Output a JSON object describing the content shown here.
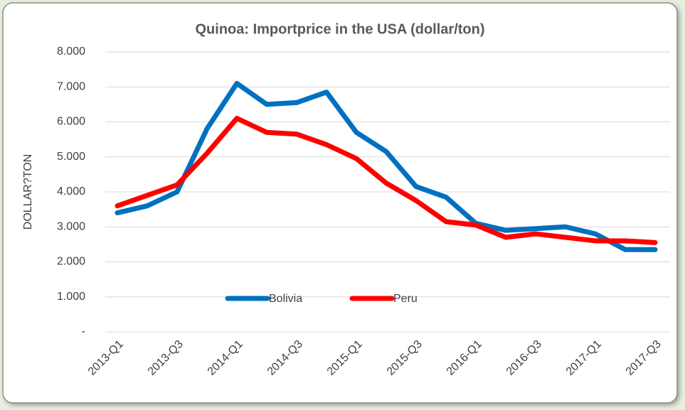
{
  "chart_data": {
    "type": "line",
    "title": "Quinoa: Importprice in the USA (dollar/ton)",
    "y_label": "DOLLAR?TON",
    "categories": [
      "2013-Q1",
      null,
      "2013-Q3",
      null,
      "2014-Q1",
      null,
      "2014-Q3",
      null,
      "2015-Q1",
      null,
      "2015-Q3",
      null,
      "2016-Q1",
      null,
      "2016-Q3",
      null,
      "2017-Q1",
      null,
      "2017-Q3"
    ],
    "series": [
      {
        "name": "Bolivia",
        "color": "#0070c0",
        "values": [
          3400,
          3600,
          4000,
          5800,
          7100,
          6500,
          6550,
          6850,
          5700,
          5150,
          4150,
          3850,
          3100,
          2900,
          2950,
          3000,
          2800,
          2350,
          2350
        ]
      },
      {
        "name": "Peru",
        "color": "#ff0000",
        "values": [
          3600,
          3900,
          4200,
          5100,
          6100,
          5700,
          5650,
          5350,
          4950,
          4250,
          3750,
          3150,
          3050,
          2700,
          2800,
          2700,
          2600,
          2600,
          2550
        ]
      }
    ],
    "ylim": [
      0,
      8000
    ],
    "yticks": [
      {
        "value": 0,
        "label": "-"
      },
      {
        "value": 1000,
        "label": "1.000"
      },
      {
        "value": 2000,
        "label": "2.000"
      },
      {
        "value": 3000,
        "label": "3.000"
      },
      {
        "value": 4000,
        "label": "4.000"
      },
      {
        "value": 5000,
        "label": "5.000"
      },
      {
        "value": 6000,
        "label": "6.000"
      },
      {
        "value": 7000,
        "label": "7.000"
      },
      {
        "value": 8000,
        "label": "8.000"
      }
    ],
    "grid": true,
    "legend": "bottom"
  }
}
